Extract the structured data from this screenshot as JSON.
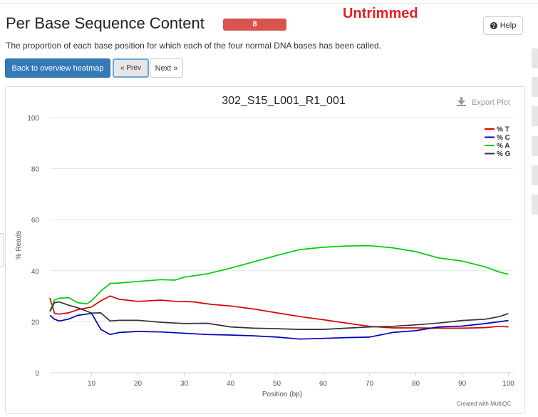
{
  "header": {
    "title": "Per Base Sequence Content",
    "badge": "8",
    "overlay_label": "Untrimmed",
    "help_label": "Help",
    "description": "The proportion of each base position for which each of the four normal DNA bases has been called."
  },
  "nav": {
    "overview_label": "Back to overview heatmap",
    "prev_label": "« Prev",
    "next_label": "Next »"
  },
  "plot": {
    "export_label": "Export Plot",
    "credit": "Created with MultiQC"
  },
  "chart_data": {
    "type": "line",
    "title": "302_S15_L001_R1_001",
    "xlabel": "Position (bp)",
    "ylabel": "% Reads",
    "xlim": [
      1,
      101
    ],
    "ylim": [
      0,
      100
    ],
    "xticks": [
      10,
      20,
      30,
      40,
      50,
      60,
      70,
      80,
      90,
      100
    ],
    "yticks": [
      0,
      20,
      40,
      60,
      80,
      100
    ],
    "grid": true,
    "legend_position": "top-right",
    "series": [
      {
        "name": "% T",
        "color": "#dd0000",
        "x": [
          1,
          2,
          3,
          5,
          7,
          10,
          12,
          14,
          16,
          20,
          25,
          28,
          32,
          36,
          40,
          45,
          50,
          55,
          60,
          65,
          70,
          75,
          80,
          85,
          90,
          95,
          98,
          100
        ],
        "y": [
          29.3,
          23.3,
          23.0,
          23.5,
          24.7,
          25.8,
          28.2,
          30.1,
          28.8,
          28.0,
          28.5,
          28.0,
          27.8,
          26.8,
          26.2,
          25.0,
          23.5,
          22.0,
          20.8,
          19.5,
          18.2,
          17.6,
          17.6,
          17.5,
          17.5,
          17.7,
          18.2,
          18.0
        ]
      },
      {
        "name": "% C",
        "color": "#0000bb",
        "x": [
          1,
          2,
          3,
          5,
          7,
          10,
          12,
          14,
          16,
          20,
          25,
          30,
          35,
          40,
          45,
          50,
          55,
          60,
          65,
          70,
          75,
          80,
          85,
          90,
          95,
          98,
          100
        ],
        "y": [
          22.5,
          21.0,
          20.3,
          21.0,
          22.5,
          23.3,
          17.0,
          15.0,
          15.8,
          16.2,
          16.0,
          15.5,
          15.0,
          14.8,
          14.5,
          14.0,
          13.2,
          13.5,
          13.8,
          14.0,
          15.8,
          16.5,
          18.0,
          18.3,
          19.3,
          20.0,
          20.5
        ]
      },
      {
        "name": "% A",
        "color": "#00cc00",
        "x": [
          1,
          2,
          3,
          5,
          7,
          9,
          10,
          12,
          14,
          16,
          20,
          25,
          28,
          30,
          35,
          40,
          45,
          50,
          55,
          60,
          65,
          70,
          75,
          80,
          85,
          90,
          95,
          98,
          100
        ],
        "y": [
          24.2,
          28.5,
          29.2,
          29.5,
          27.5,
          27.0,
          28.2,
          32.0,
          35.0,
          35.2,
          35.8,
          36.5,
          36.3,
          37.5,
          38.8,
          41.0,
          43.5,
          46.0,
          48.3,
          49.2,
          49.7,
          49.8,
          49.0,
          47.5,
          45.0,
          43.8,
          41.5,
          39.5,
          38.6
        ]
      },
      {
        "name": "% G",
        "color": "#333333",
        "x": [
          1,
          2,
          3,
          5,
          7,
          10,
          12,
          14,
          16,
          20,
          25,
          30,
          35,
          40,
          45,
          50,
          55,
          60,
          65,
          70,
          75,
          80,
          85,
          90,
          95,
          98,
          100
        ],
        "y": [
          24.0,
          27.5,
          27.8,
          26.5,
          25.5,
          23.4,
          23.5,
          20.3,
          20.6,
          20.6,
          19.8,
          19.3,
          19.4,
          18.0,
          17.5,
          17.3,
          17.0,
          17.0,
          17.5,
          18.0,
          18.2,
          18.8,
          19.5,
          20.5,
          21.0,
          22.0,
          23.2
        ]
      }
    ]
  }
}
